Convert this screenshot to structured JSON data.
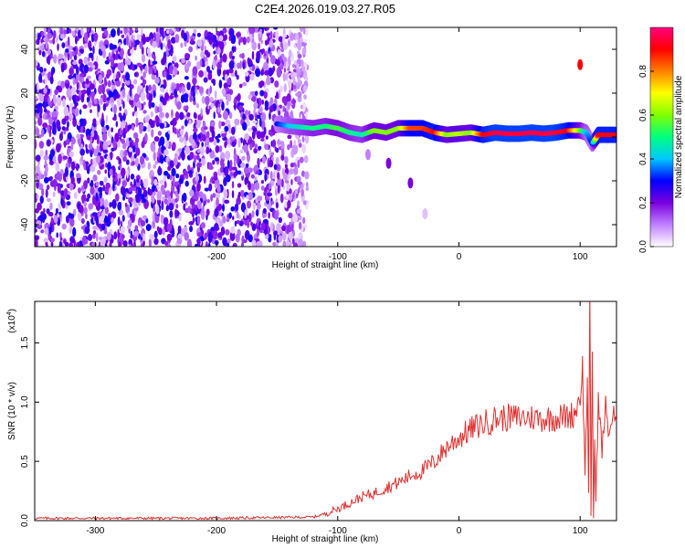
{
  "chart_data": [
    {
      "type": "heatmap",
      "title": "C2E4.2026.019.03.27.R05",
      "xlabel": "Height of straight line (km)",
      "ylabel": "Frequency (Hz)",
      "xlim": [
        -350,
        130
      ],
      "ylim": [
        -50,
        50
      ],
      "x_ticks": [
        -300,
        -200,
        -100,
        0,
        100
      ],
      "x_tick_labels": [
        "-300",
        "-200",
        "-100",
        "0",
        "100"
      ],
      "y_ticks": [
        -40,
        -20,
        0,
        20,
        40
      ],
      "y_tick_labels": [
        "-40",
        "-20",
        "0",
        "20",
        "40"
      ],
      "colorbar": {
        "label": "Normalized spectral amplitude",
        "range": [
          0,
          1
        ],
        "ticks": [
          0,
          0.2,
          0.4,
          0.6,
          0.8
        ],
        "tick_labels": [
          "0.0",
          "0.2",
          "0.4",
          "0.6",
          "0.8"
        ],
        "colors": [
          "#ffffff",
          "#c080ff",
          "#7a00e0",
          "#0000ff",
          "#00c8ff",
          "#00ff80",
          "#80ff00",
          "#ffff00",
          "#ff8000",
          "#ff0000",
          "#ff0080"
        ]
      },
      "regions": [
        {
          "x": [
            -350,
            -125
          ],
          "y": [
            -50,
            50
          ],
          "level": 0.25
        },
        {
          "x": [
            -150,
            115
          ],
          "y": [
            -2,
            6
          ],
          "level": 0.8
        }
      ],
      "ridge": {
        "x": [
          -150,
          -140,
          -130,
          -120,
          -110,
          -100,
          -90,
          -80,
          -70,
          -60,
          -50,
          -40,
          -30,
          -20,
          -10,
          0,
          10,
          20,
          30,
          40,
          50,
          60,
          70,
          80,
          90,
          100,
          105,
          110,
          115,
          130
        ],
        "y": [
          6,
          5,
          4.5,
          4,
          5,
          4,
          2,
          1,
          3,
          2,
          4,
          4,
          4,
          2,
          1,
          1.5,
          2,
          1,
          2,
          1.5,
          1.5,
          2,
          1.5,
          2,
          3,
          3,
          2,
          -3,
          1,
          1
        ],
        "level": [
          0.3,
          0.4,
          0.45,
          0.5,
          0.5,
          0.55,
          0.5,
          0.45,
          0.6,
          0.6,
          0.6,
          0.85,
          0.85,
          0.9,
          0.6,
          0.65,
          0.6,
          0.9,
          0.95,
          0.95,
          0.95,
          0.95,
          0.95,
          0.95,
          0.9,
          0.6,
          0.4,
          0.3,
          0.9,
          0.9
        ]
      },
      "features": [
        {
          "x": 100,
          "y": 33,
          "level": 0.9
        },
        {
          "x": -58,
          "y": -12,
          "level": 0.2
        },
        {
          "x": -40,
          "y": -21,
          "level": 0.2
        },
        {
          "x": -75,
          "y": -8,
          "level": 0.1
        },
        {
          "x": -28,
          "y": -35,
          "level": 0.05
        }
      ]
    },
    {
      "type": "line",
      "xlabel": "Height of straight line (km)",
      "ylabel": "SNR (10 * v/v)",
      "y_scale_label": "(x10",
      "y_scale_exponent": "4",
      "y_scale_close": ")",
      "xlim": [
        -350,
        130
      ],
      "ylim": [
        0,
        1.85
      ],
      "x_ticks": [
        -300,
        -200,
        -100,
        0,
        100
      ],
      "x_tick_labels": [
        "-300",
        "-200",
        "-100",
        "0",
        "100"
      ],
      "y_ticks": [
        0,
        0.5,
        1.0,
        1.5
      ],
      "y_tick_labels": [
        "0.0",
        "0.5",
        "1.0",
        "1.5"
      ],
      "series": [
        {
          "color": "#e03030",
          "x": [
            -350,
            -300,
            -200,
            -120,
            -110,
            -100,
            -90,
            -80,
            -70,
            -60,
            -50,
            -40,
            -30,
            -20,
            -10,
            0,
            10,
            20,
            30,
            40,
            50,
            60,
            70,
            80,
            90,
            95,
            100,
            102,
            104,
            106,
            107,
            108,
            109,
            110,
            111,
            112,
            113,
            115,
            118,
            121,
            124,
            127,
            130
          ],
          "y": [
            0.02,
            0.02,
            0.02,
            0.03,
            0.06,
            0.1,
            0.15,
            0.2,
            0.23,
            0.28,
            0.32,
            0.38,
            0.42,
            0.5,
            0.62,
            0.7,
            0.77,
            0.82,
            0.86,
            0.87,
            0.87,
            0.87,
            0.86,
            0.87,
            0.88,
            0.9,
            1.05,
            1.3,
            0.4,
            1.2,
            0.2,
            1.85,
            0.05,
            1.5,
            0.02,
            0.6,
            0.2,
            1.0,
            0.6,
            0.95,
            0.75,
            0.88,
            0.85
          ]
        }
      ]
    }
  ]
}
